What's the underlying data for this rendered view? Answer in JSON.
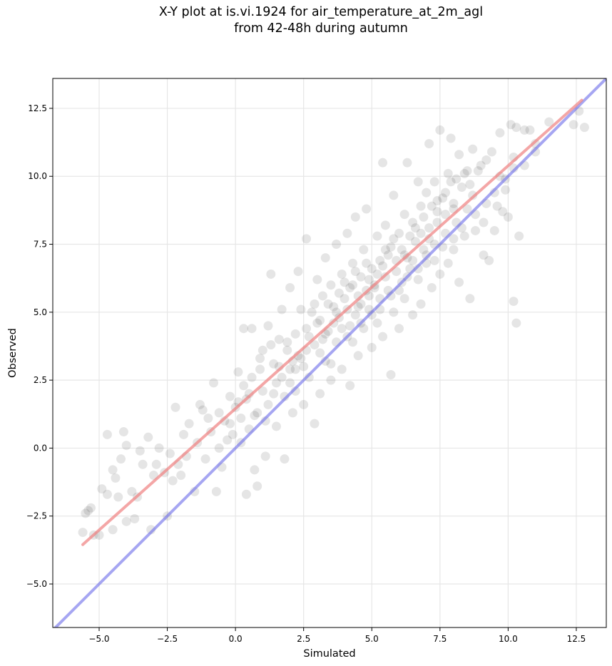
{
  "title": {
    "line1": "X-Y plot at is.vi.1924 for air_temperature_at_2m_agl",
    "line2": "from 42-48h during autumn"
  },
  "colors": {
    "points": "#000000",
    "fit_line": "#f08080",
    "identity_line": "#6b6bea",
    "grid": "#e6e6e6"
  },
  "chart_data": {
    "type": "scatter",
    "title": "X-Y plot at is.vi.1924 for air_temperature_at_2m_agl from 42-48h during autumn",
    "xlabel": "Simulated",
    "ylabel": "Observed",
    "xlim": [
      -6.7,
      13.6
    ],
    "ylim": [
      -6.6,
      13.6
    ],
    "xticks": [
      -5.0,
      -2.5,
      0.0,
      2.5,
      5.0,
      7.5,
      10.0,
      12.5
    ],
    "xtick_labels": [
      "−5.0",
      "−2.5",
      "0.0",
      "2.5",
      "5.0",
      "7.5",
      "10.0",
      "12.5"
    ],
    "yticks": [
      -5.0,
      -2.5,
      0.0,
      2.5,
      5.0,
      7.5,
      10.0,
      12.5
    ],
    "ytick_labels": [
      "−5.0",
      "−2.5",
      "0.0",
      "2.5",
      "5.0",
      "7.5",
      "10.0",
      "12.5"
    ],
    "grid": true,
    "point_opacity": 0.1,
    "fit_line": {
      "x": [
        -5.6,
        12.7
      ],
      "y": [
        -3.55,
        12.8
      ]
    },
    "identity_line": {
      "x": [
        -6.7,
        13.6
      ],
      "y": [
        -6.7,
        13.6
      ]
    },
    "points": [
      [
        -5.6,
        -3.1
      ],
      [
        -5.5,
        -2.4
      ],
      [
        -5.3,
        -2.2
      ],
      [
        -5.2,
        -3.2
      ],
      [
        -5.0,
        -3.2
      ],
      [
        -4.7,
        -1.7
      ],
      [
        -4.7,
        0.5
      ],
      [
        -4.5,
        -0.8
      ],
      [
        -4.4,
        -1.1
      ],
      [
        -4.5,
        -3.0
      ],
      [
        -4.3,
        -1.8
      ],
      [
        -4.1,
        0.6
      ],
      [
        -4.0,
        0.1
      ],
      [
        -4.0,
        -2.7
      ],
      [
        -3.8,
        -1.6
      ],
      [
        -3.6,
        -1.8
      ],
      [
        -3.5,
        -0.1
      ],
      [
        -3.4,
        -0.6
      ],
      [
        -3.2,
        0.4
      ],
      [
        -3.1,
        -3.0
      ],
      [
        -3.0,
        -1.0
      ],
      [
        -2.8,
        0.0
      ],
      [
        -2.6,
        -0.9
      ],
      [
        -2.5,
        -2.5
      ],
      [
        -2.3,
        -1.2
      ],
      [
        -2.2,
        1.5
      ],
      [
        -2.1,
        -0.6
      ],
      [
        -2.0,
        -1.0
      ],
      [
        -1.8,
        -0.3
      ],
      [
        -1.7,
        0.9
      ],
      [
        -1.5,
        -1.6
      ],
      [
        -1.4,
        0.2
      ],
      [
        -1.3,
        1.6
      ],
      [
        -1.1,
        -0.4
      ],
      [
        -1.0,
        1.1
      ],
      [
        -0.9,
        0.6
      ],
      [
        -0.8,
        2.4
      ],
      [
        -0.7,
        -1.6
      ],
      [
        -0.6,
        1.3
      ],
      [
        -0.5,
        -0.7
      ],
      [
        -0.3,
        0.3
      ],
      [
        -0.2,
        1.9
      ],
      [
        -0.2,
        0.9
      ],
      [
        0.0,
        1.5
      ],
      [
        0.1,
        2.8
      ],
      [
        0.2,
        0.2
      ],
      [
        0.3,
        4.4
      ],
      [
        0.4,
        1.8
      ],
      [
        0.4,
        -1.7
      ],
      [
        0.5,
        0.7
      ],
      [
        0.6,
        4.4
      ],
      [
        0.6,
        2.6
      ],
      [
        0.7,
        -0.8
      ],
      [
        0.8,
        1.3
      ],
      [
        0.8,
        -1.4
      ],
      [
        0.9,
        3.3
      ],
      [
        1.0,
        2.1
      ],
      [
        1.1,
        -0.3
      ],
      [
        1.1,
        1.0
      ],
      [
        1.2,
        4.5
      ],
      [
        1.3,
        3.8
      ],
      [
        1.3,
        6.4
      ],
      [
        1.4,
        2.0
      ],
      [
        1.5,
        0.8
      ],
      [
        1.6,
        3.0
      ],
      [
        1.7,
        5.1
      ],
      [
        1.8,
        1.9
      ],
      [
        1.8,
        -0.4
      ],
      [
        1.9,
        3.6
      ],
      [
        2.0,
        2.4
      ],
      [
        2.0,
        5.9
      ],
      [
        2.1,
        1.3
      ],
      [
        2.2,
        4.2
      ],
      [
        2.2,
        2.9
      ],
      [
        2.3,
        6.5
      ],
      [
        2.4,
        3.3
      ],
      [
        2.5,
        1.6
      ],
      [
        2.6,
        4.4
      ],
      [
        2.6,
        7.7
      ],
      [
        2.7,
        2.6
      ],
      [
        2.8,
        5.0
      ],
      [
        2.9,
        3.8
      ],
      [
        2.9,
        0.9
      ],
      [
        3.0,
        6.2
      ],
      [
        3.1,
        4.7
      ],
      [
        3.1,
        2.0
      ],
      [
        3.2,
        5.6
      ],
      [
        3.3,
        3.2
      ],
      [
        3.3,
        7.0
      ],
      [
        3.4,
        4.3
      ],
      [
        3.5,
        6.0
      ],
      [
        3.5,
        2.5
      ],
      [
        3.6,
        5.2
      ],
      [
        3.7,
        3.9
      ],
      [
        3.7,
        7.5
      ],
      [
        3.8,
        4.8
      ],
      [
        3.9,
        6.4
      ],
      [
        3.9,
        2.9
      ],
      [
        4.0,
        5.5
      ],
      [
        4.1,
        4.1
      ],
      [
        4.1,
        7.9
      ],
      [
        4.2,
        5.9
      ],
      [
        4.2,
        2.3
      ],
      [
        4.3,
        6.8
      ],
      [
        4.4,
        4.9
      ],
      [
        4.4,
        8.5
      ],
      [
        4.5,
        5.6
      ],
      [
        4.5,
        3.4
      ],
      [
        4.6,
        6.3
      ],
      [
        4.7,
        4.4
      ],
      [
        4.7,
        7.3
      ],
      [
        4.8,
        5.8
      ],
      [
        4.8,
        8.8
      ],
      [
        4.9,
        5.1
      ],
      [
        5.0,
        6.6
      ],
      [
        5.0,
        3.7
      ],
      [
        5.1,
        6.0
      ],
      [
        5.2,
        7.8
      ],
      [
        5.2,
        4.6
      ],
      [
        5.3,
        5.5
      ],
      [
        5.3,
        6.9
      ],
      [
        5.4,
        10.5
      ],
      [
        5.4,
        4.1
      ],
      [
        5.5,
        6.3
      ],
      [
        5.5,
        8.2
      ],
      [
        5.6,
        5.8
      ],
      [
        5.7,
        2.7
      ],
      [
        5.7,
        7.4
      ],
      [
        5.8,
        5.0
      ],
      [
        5.8,
        9.3
      ],
      [
        5.9,
        6.5
      ],
      [
        6.0,
        7.9
      ],
      [
        6.0,
        4.4
      ],
      [
        6.1,
        6.1
      ],
      [
        6.2,
        8.6
      ],
      [
        6.2,
        5.5
      ],
      [
        6.3,
        7.0
      ],
      [
        6.3,
        10.5
      ],
      [
        6.4,
        6.6
      ],
      [
        6.5,
        8.3
      ],
      [
        6.5,
        4.9
      ],
      [
        6.6,
        7.6
      ],
      [
        6.7,
        9.8
      ],
      [
        6.7,
        6.2
      ],
      [
        6.8,
        8.9
      ],
      [
        6.8,
        5.3
      ],
      [
        6.9,
        7.3
      ],
      [
        7.0,
        9.4
      ],
      [
        7.0,
        6.8
      ],
      [
        7.1,
        11.2
      ],
      [
        7.1,
        8.1
      ],
      [
        7.2,
        5.9
      ],
      [
        7.3,
        9.8
      ],
      [
        7.3,
        7.5
      ],
      [
        7.4,
        8.7
      ],
      [
        7.5,
        11.7
      ],
      [
        7.5,
        6.4
      ],
      [
        7.6,
        9.2
      ],
      [
        7.7,
        7.9
      ],
      [
        7.8,
        10.1
      ],
      [
        7.8,
        6.8
      ],
      [
        7.9,
        11.4
      ],
      [
        8.0,
        9.0
      ],
      [
        8.0,
        7.3
      ],
      [
        8.1,
        8.3
      ],
      [
        8.2,
        10.8
      ],
      [
        8.2,
        6.1
      ],
      [
        8.3,
        9.6
      ],
      [
        8.4,
        7.8
      ],
      [
        8.5,
        10.2
      ],
      [
        8.5,
        8.8
      ],
      [
        8.6,
        5.5
      ],
      [
        8.7,
        9.3
      ],
      [
        8.7,
        11.0
      ],
      [
        8.8,
        8.0
      ],
      [
        9.0,
        10.4
      ],
      [
        9.1,
        7.1
      ],
      [
        9.2,
        9.0
      ],
      [
        9.3,
        6.9
      ],
      [
        9.4,
        10.9
      ],
      [
        9.5,
        8.0
      ],
      [
        9.6,
        8.9
      ],
      [
        9.7,
        10.0
      ],
      [
        9.7,
        11.6
      ],
      [
        9.8,
        8.7
      ],
      [
        9.9,
        9.5
      ],
      [
        10.0,
        8.5
      ],
      [
        10.1,
        11.9
      ],
      [
        10.2,
        10.3
      ],
      [
        10.2,
        5.4
      ],
      [
        10.3,
        11.8
      ],
      [
        10.3,
        4.6
      ],
      [
        10.4,
        7.8
      ],
      [
        10.6,
        11.7
      ],
      [
        10.8,
        11.7
      ],
      [
        11.0,
        10.9
      ],
      [
        11.5,
        12.0
      ],
      [
        12.4,
        11.9
      ],
      [
        12.8,
        11.8
      ],
      [
        12.6,
        12.4
      ],
      [
        -5.4,
        -2.3
      ],
      [
        -4.9,
        -1.5
      ],
      [
        -4.2,
        -0.4
      ],
      [
        -3.7,
        -2.6
      ],
      [
        -2.9,
        -0.6
      ],
      [
        -2.4,
        -0.2
      ],
      [
        -1.9,
        0.5
      ],
      [
        -1.2,
        1.4
      ],
      [
        -0.6,
        0.0
      ],
      [
        0.1,
        1.7
      ],
      [
        0.3,
        2.3
      ],
      [
        0.9,
        2.9
      ],
      [
        1.4,
        3.1
      ],
      [
        1.9,
        3.9
      ],
      [
        2.3,
        3.4
      ],
      [
        2.7,
        4.1
      ],
      [
        3.0,
        4.6
      ],
      [
        3.4,
        5.3
      ],
      [
        3.8,
        5.7
      ],
      [
        4.0,
        6.1
      ],
      [
        4.3,
        6.0
      ],
      [
        4.6,
        5.3
      ],
      [
        4.9,
        6.2
      ],
      [
        5.1,
        5.9
      ],
      [
        5.4,
        6.7
      ],
      [
        5.6,
        7.1
      ],
      [
        5.9,
        6.9
      ],
      [
        6.1,
        7.3
      ],
      [
        6.4,
        7.8
      ],
      [
        6.6,
        8.1
      ],
      [
        6.9,
        8.5
      ],
      [
        7.2,
        8.9
      ],
      [
        7.4,
        9.1
      ],
      [
        7.7,
        9.4
      ],
      [
        7.9,
        9.8
      ],
      [
        8.1,
        9.9
      ],
      [
        8.4,
        10.1
      ],
      [
        8.6,
        9.7
      ],
      [
        8.9,
        10.2
      ],
      [
        9.2,
        10.6
      ],
      [
        1.0,
        3.6
      ],
      [
        1.6,
        4.0
      ],
      [
        2.1,
        3.2
      ],
      [
        2.4,
        5.1
      ],
      [
        2.9,
        5.3
      ],
      [
        3.2,
        4.0
      ],
      [
        3.6,
        4.6
      ],
      [
        4.1,
        5.1
      ],
      [
        4.4,
        6.5
      ],
      [
        4.8,
        6.8
      ],
      [
        5.2,
        6.4
      ],
      [
        5.5,
        7.3
      ],
      [
        5.8,
        7.7
      ],
      [
        6.2,
        7.1
      ],
      [
        6.5,
        6.9
      ],
      [
        6.8,
        7.9
      ],
      [
        7.1,
        7.7
      ],
      [
        7.4,
        8.3
      ],
      [
        7.7,
        8.6
      ],
      [
        8.0,
        8.8
      ],
      [
        0.5,
        2.0
      ],
      [
        1.2,
        1.6
      ],
      [
        1.7,
        2.6
      ],
      [
        2.2,
        2.1
      ],
      [
        2.5,
        3.0
      ],
      [
        3.1,
        3.5
      ],
      [
        3.5,
        3.1
      ],
      [
        3.9,
        4.4
      ],
      [
        4.3,
        3.9
      ],
      [
        4.6,
        4.6
      ],
      [
        5.0,
        4.9
      ],
      [
        5.3,
        5.1
      ],
      [
        5.7,
        5.6
      ],
      [
        6.0,
        5.8
      ],
      [
        6.3,
        6.3
      ],
      [
        6.7,
        6.6
      ],
      [
        7.0,
        7.1
      ],
      [
        7.3,
        6.9
      ],
      [
        7.6,
        7.4
      ],
      [
        8.0,
        7.7
      ],
      [
        8.3,
        8.1
      ],
      [
        8.8,
        8.6
      ],
      [
        9.1,
        8.3
      ],
      [
        9.5,
        9.4
      ],
      [
        9.9,
        9.9
      ],
      [
        10.2,
        10.7
      ],
      [
        10.6,
        10.4
      ],
      [
        11.0,
        11.2
      ],
      [
        -0.4,
        1.0
      ],
      [
        -0.1,
        0.5
      ],
      [
        0.2,
        1.1
      ],
      [
        0.7,
        1.2
      ],
      [
        1.5,
        2.4
      ],
      [
        2.0,
        2.9
      ],
      [
        2.6,
        3.6
      ],
      [
        3.3,
        4.2
      ],
      [
        3.7,
        5.0
      ],
      [
        4.2,
        4.5
      ],
      [
        4.5,
        5.2
      ],
      [
        4.9,
        5.6
      ]
    ]
  }
}
